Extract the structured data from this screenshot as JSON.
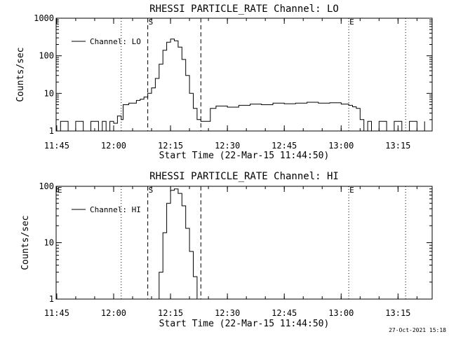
{
  "footer": {
    "timestamp": "27-Oct-2021 15:18"
  },
  "chart_data": [
    {
      "type": "line",
      "title": "RHESSI PARTICLE_RATE Channel: LO",
      "xlabel": "Start Time (22-Mar-15 11:44:50)",
      "ylabel": "Counts/sec",
      "x_unit": "time (HH:MM, 22-Mar-15)",
      "xlim": [
        "11:44:50",
        "13:24:00"
      ],
      "ylim": [
        1,
        1000
      ],
      "y_scale": "log",
      "x_ticks": [
        "11:45",
        "12:00",
        "12:15",
        "12:30",
        "12:45",
        "13:00",
        "13:15"
      ],
      "y_ticks": [
        "1",
        "10",
        "100",
        "1000"
      ],
      "legend": {
        "entries": [
          "Channel: LO"
        ],
        "position": "top-left"
      },
      "markers": [
        {
          "x": "12:02",
          "style": "dotted",
          "label": ""
        },
        {
          "x": "12:09",
          "style": "dashed",
          "label": "S"
        },
        {
          "x": "12:23",
          "style": "dashed",
          "label": ""
        },
        {
          "x": "13:02",
          "style": "dotted",
          "label": "E"
        },
        {
          "x": "13:17",
          "style": "dotted",
          "label": ""
        }
      ],
      "series": [
        {
          "name": "Channel: LO",
          "points": [
            [
              "11:44:50",
              1
            ],
            [
              "11:46",
              1.8
            ],
            [
              "11:48",
              1
            ],
            [
              "11:50",
              1.8
            ],
            [
              "11:52",
              1
            ],
            [
              "11:54",
              1.8
            ],
            [
              "11:56",
              1
            ],
            [
              "11:57",
              1.8
            ],
            [
              "11:58",
              1
            ],
            [
              "11:59",
              1.8
            ],
            [
              "12:00",
              1.6
            ],
            [
              "12:01",
              2.5
            ],
            [
              "12:02",
              2.0
            ],
            [
              "12:02:30",
              5.0
            ],
            [
              "12:04",
              5.5
            ],
            [
              "12:06",
              6.5
            ],
            [
              "12:07",
              7.0
            ],
            [
              "12:08",
              8.0
            ],
            [
              "12:09",
              10
            ],
            [
              "12:10",
              14
            ],
            [
              "12:11",
              25
            ],
            [
              "12:12",
              60
            ],
            [
              "12:13",
              140
            ],
            [
              "12:14",
              230
            ],
            [
              "12:15",
              280
            ],
            [
              "12:16",
              250
            ],
            [
              "12:17",
              170
            ],
            [
              "12:18",
              80
            ],
            [
              "12:19",
              30
            ],
            [
              "12:20",
              10
            ],
            [
              "12:21",
              4
            ],
            [
              "12:22",
              2
            ],
            [
              "12:23",
              1.8
            ],
            [
              "12:24",
              1.8
            ],
            [
              "12:25",
              1.8
            ],
            [
              "12:25:30",
              4.0
            ],
            [
              "12:27",
              4.6
            ],
            [
              "12:30",
              4.3
            ],
            [
              "12:33",
              4.8
            ],
            [
              "12:36",
              5.2
            ],
            [
              "12:39",
              5.0
            ],
            [
              "12:42",
              5.5
            ],
            [
              "12:45",
              5.3
            ],
            [
              "12:48",
              5.5
            ],
            [
              "12:51",
              5.8
            ],
            [
              "12:54",
              5.5
            ],
            [
              "12:57",
              5.6
            ],
            [
              "13:00",
              5.2
            ],
            [
              "13:02",
              4.8
            ],
            [
              "13:03",
              4.4
            ],
            [
              "13:04",
              4.0
            ],
            [
              "13:05",
              2.0
            ],
            [
              "13:06",
              1.0
            ],
            [
              "13:07",
              1.8
            ],
            [
              "13:08",
              1
            ],
            [
              "13:10",
              1.8
            ],
            [
              "13:12",
              1
            ],
            [
              "13:14",
              1.8
            ],
            [
              "13:16",
              1
            ],
            [
              "13:18",
              1.8
            ],
            [
              "13:20",
              1
            ],
            [
              "13:22",
              1.8
            ]
          ]
        }
      ]
    },
    {
      "type": "line",
      "title": "RHESSI PARTICLE_RATE Channel: HI",
      "xlabel": "Start Time (22-Mar-15 11:44:50)",
      "ylabel": "Counts/sec",
      "x_unit": "time (HH:MM, 22-Mar-15)",
      "xlim": [
        "11:44:50",
        "13:24:00"
      ],
      "ylim": [
        1,
        100
      ],
      "y_scale": "log",
      "x_ticks": [
        "11:45",
        "12:00",
        "12:15",
        "12:30",
        "12:45",
        "13:00",
        "13:15"
      ],
      "y_ticks": [
        "1",
        "10",
        "100"
      ],
      "legend": {
        "entries": [
          "Channel: HI"
        ],
        "position": "top-left"
      },
      "markers": [
        {
          "x": "11:45",
          "style": "none",
          "label": "E"
        },
        {
          "x": "12:02",
          "style": "dotted",
          "label": ""
        },
        {
          "x": "12:09",
          "style": "dashed",
          "label": "S"
        },
        {
          "x": "12:23",
          "style": "dashed",
          "label": ""
        },
        {
          "x": "13:02",
          "style": "dotted",
          "label": "E"
        },
        {
          "x": "13:17",
          "style": "dotted",
          "label": ""
        }
      ],
      "series": [
        {
          "name": "Channel: HI",
          "points": [
            [
              "12:11",
              1.0
            ],
            [
              "12:12",
              3.0
            ],
            [
              "12:13",
              15
            ],
            [
              "12:14",
              50
            ],
            [
              "12:15",
              85
            ],
            [
              "12:16",
              90
            ],
            [
              "12:17",
              75
            ],
            [
              "12:18",
              45
            ],
            [
              "12:19",
              18
            ],
            [
              "12:20",
              7
            ],
            [
              "12:21",
              2.5
            ],
            [
              "12:22",
              1.0
            ]
          ]
        }
      ]
    }
  ]
}
